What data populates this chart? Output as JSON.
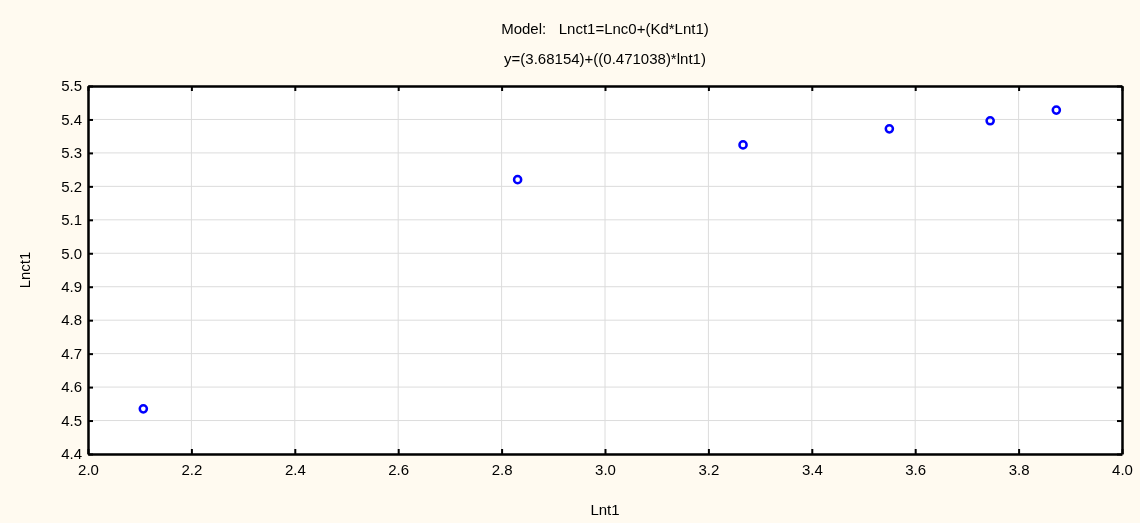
{
  "chart_data": {
    "type": "scatter",
    "title": "Model:   Lnct1=Lnc0+(Kd*Lnt1)",
    "subtitle": "y=(3.68154)+((0.471038)*lnt1)",
    "xlabel": "Lnt1",
    "ylabel": "Lnct1",
    "x": [
      2.107,
      2.831,
      3.267,
      3.55,
      3.745,
      3.873
    ],
    "series": [
      {
        "color": "#0000ff",
        "values": [
          4.535,
          5.22,
          5.324,
          5.372,
          5.396,
          5.428
        ]
      }
    ],
    "xlim": [
      2.0,
      4.0
    ],
    "xticks": [
      {
        "value": 2,
        "label": "2.0"
      },
      2.2,
      2.4,
      2.6,
      2.8,
      {
        "value": 3,
        "label": "3.0"
      },
      3.2,
      3.4,
      3.6,
      3.8,
      {
        "value": 4,
        "label": "4.0"
      }
    ],
    "ylim": [
      4.4,
      5.5
    ],
    "yticks": [
      4.4,
      4.5,
      4.6,
      4.7,
      4.8,
      4.9,
      {
        "value": 5,
        "label": "5.0"
      },
      5.1,
      5.2,
      5.3,
      5.4,
      5.5
    ],
    "grid": true,
    "marker": "circle"
  }
}
